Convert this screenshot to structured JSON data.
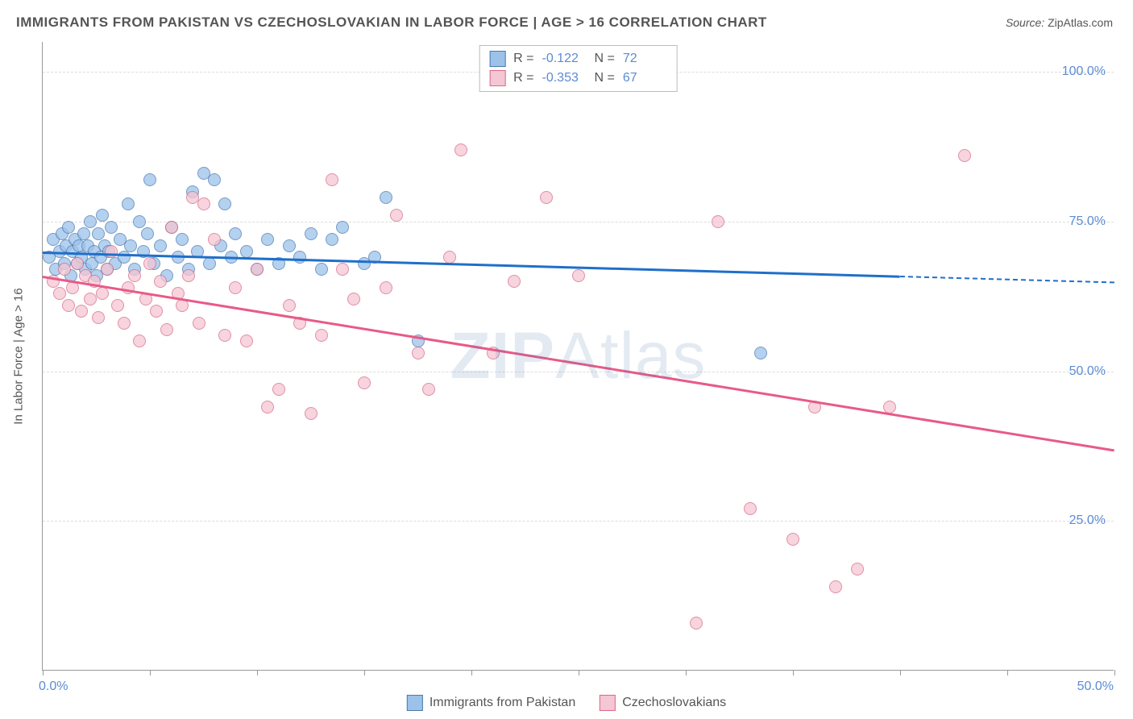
{
  "title": "IMMIGRANTS FROM PAKISTAN VS CZECHOSLOVAKIAN IN LABOR FORCE | AGE > 16 CORRELATION CHART",
  "source": {
    "label": "Source:",
    "value": "ZipAtlas.com"
  },
  "watermark": {
    "bold": "ZIP",
    "light": "Atlas"
  },
  "chart": {
    "type": "scatter-correlation",
    "background_color": "#ffffff",
    "grid_color": "#dcdcdc",
    "axis_color": "#999999",
    "tick_label_color": "#5b8bd4",
    "text_color": "#555555",
    "y_axis_title": "In Labor Force | Age > 16",
    "xlim": [
      0,
      50
    ],
    "ylim": [
      0,
      105
    ],
    "x_ticks": [
      0,
      5,
      10,
      15,
      20,
      25,
      30,
      35,
      40,
      45,
      50
    ],
    "x_tick_labels": {
      "first": "0.0%",
      "last": "50.0%"
    },
    "y_gridlines": [
      25,
      50,
      75,
      100
    ],
    "y_tick_labels": [
      "25.0%",
      "50.0%",
      "75.0%",
      "100.0%"
    ],
    "marker_radius": 8,
    "marker_stroke_width": 1.5,
    "marker_fill_opacity": 0.35,
    "line_width": 2.5,
    "series": [
      {
        "key": "pakistan",
        "label": "Immigrants from Pakistan",
        "fill": "#9cc2ea",
        "stroke": "#4a7ab0",
        "line_color": "#1f6fc9",
        "R": "-0.122",
        "N": "72",
        "trend": {
          "x1": 0,
          "y1": 70,
          "x2": 40,
          "y2": 66,
          "extend_to": 50,
          "extend_y": 65
        },
        "points": [
          [
            0.3,
            69
          ],
          [
            0.5,
            72
          ],
          [
            0.6,
            67
          ],
          [
            0.8,
            70
          ],
          [
            0.9,
            73
          ],
          [
            1.0,
            68
          ],
          [
            1.1,
            71
          ],
          [
            1.2,
            74
          ],
          [
            1.3,
            66
          ],
          [
            1.4,
            70
          ],
          [
            1.5,
            72
          ],
          [
            1.6,
            68
          ],
          [
            1.7,
            71
          ],
          [
            1.8,
            69
          ],
          [
            1.9,
            73
          ],
          [
            2.0,
            67
          ],
          [
            2.1,
            71
          ],
          [
            2.2,
            75
          ],
          [
            2.3,
            68
          ],
          [
            2.4,
            70
          ],
          [
            2.5,
            66
          ],
          [
            2.6,
            73
          ],
          [
            2.7,
            69
          ],
          [
            2.8,
            76
          ],
          [
            2.9,
            71
          ],
          [
            3.0,
            67
          ],
          [
            3.1,
            70
          ],
          [
            3.2,
            74
          ],
          [
            3.4,
            68
          ],
          [
            3.6,
            72
          ],
          [
            3.8,
            69
          ],
          [
            4.0,
            78
          ],
          [
            4.1,
            71
          ],
          [
            4.3,
            67
          ],
          [
            4.5,
            75
          ],
          [
            4.7,
            70
          ],
          [
            4.9,
            73
          ],
          [
            5.0,
            82
          ],
          [
            5.2,
            68
          ],
          [
            5.5,
            71
          ],
          [
            5.8,
            66
          ],
          [
            6.0,
            74
          ],
          [
            6.3,
            69
          ],
          [
            6.5,
            72
          ],
          [
            6.8,
            67
          ],
          [
            7.0,
            80
          ],
          [
            7.2,
            70
          ],
          [
            7.5,
            83
          ],
          [
            7.8,
            68
          ],
          [
            8.0,
            82
          ],
          [
            8.3,
            71
          ],
          [
            8.5,
            78
          ],
          [
            8.8,
            69
          ],
          [
            9.0,
            73
          ],
          [
            9.5,
            70
          ],
          [
            10.0,
            67
          ],
          [
            10.5,
            72
          ],
          [
            11.0,
            68
          ],
          [
            11.5,
            71
          ],
          [
            12.0,
            69
          ],
          [
            12.5,
            73
          ],
          [
            13.0,
            67
          ],
          [
            13.5,
            72
          ],
          [
            14.0,
            74
          ],
          [
            15.0,
            68
          ],
          [
            15.5,
            69
          ],
          [
            16.0,
            79
          ],
          [
            17.5,
            55
          ],
          [
            33.5,
            53
          ]
        ]
      },
      {
        "key": "czech",
        "label": "Czechoslovakians",
        "fill": "#f5c6d3",
        "stroke": "#d66b88",
        "line_color": "#e85a87",
        "R": "-0.353",
        "N": "67",
        "trend": {
          "x1": 0,
          "y1": 66,
          "x2": 50,
          "y2": 37
        },
        "points": [
          [
            0.5,
            65
          ],
          [
            0.8,
            63
          ],
          [
            1.0,
            67
          ],
          [
            1.2,
            61
          ],
          [
            1.4,
            64
          ],
          [
            1.6,
            68
          ],
          [
            1.8,
            60
          ],
          [
            2.0,
            66
          ],
          [
            2.2,
            62
          ],
          [
            2.4,
            65
          ],
          [
            2.6,
            59
          ],
          [
            2.8,
            63
          ],
          [
            3.0,
            67
          ],
          [
            3.2,
            70
          ],
          [
            3.5,
            61
          ],
          [
            3.8,
            58
          ],
          [
            4.0,
            64
          ],
          [
            4.3,
            66
          ],
          [
            4.5,
            55
          ],
          [
            4.8,
            62
          ],
          [
            5.0,
            68
          ],
          [
            5.3,
            60
          ],
          [
            5.5,
            65
          ],
          [
            5.8,
            57
          ],
          [
            6.0,
            74
          ],
          [
            6.3,
            63
          ],
          [
            6.5,
            61
          ],
          [
            6.8,
            66
          ],
          [
            7.0,
            79
          ],
          [
            7.3,
            58
          ],
          [
            7.5,
            78
          ],
          [
            8.0,
            72
          ],
          [
            8.5,
            56
          ],
          [
            9.0,
            64
          ],
          [
            9.5,
            55
          ],
          [
            10.0,
            67
          ],
          [
            10.5,
            44
          ],
          [
            11.0,
            47
          ],
          [
            11.5,
            61
          ],
          [
            12.0,
            58
          ],
          [
            12.5,
            43
          ],
          [
            13.0,
            56
          ],
          [
            13.5,
            82
          ],
          [
            14.0,
            67
          ],
          [
            14.5,
            62
          ],
          [
            15.0,
            48
          ],
          [
            16.0,
            64
          ],
          [
            16.5,
            76
          ],
          [
            17.5,
            53
          ],
          [
            18.0,
            47
          ],
          [
            19.0,
            69
          ],
          [
            19.5,
            87
          ],
          [
            21.0,
            53
          ],
          [
            22.0,
            65
          ],
          [
            23.5,
            79
          ],
          [
            25.0,
            66
          ],
          [
            31.5,
            75
          ],
          [
            33.0,
            27
          ],
          [
            35.0,
            22
          ],
          [
            36.0,
            44
          ],
          [
            37.0,
            14
          ],
          [
            38.0,
            17
          ],
          [
            39.5,
            44
          ],
          [
            43.0,
            86
          ],
          [
            30.5,
            8
          ]
        ]
      }
    ]
  },
  "legend_stats_labels": {
    "R": "R =",
    "N": "N ="
  }
}
